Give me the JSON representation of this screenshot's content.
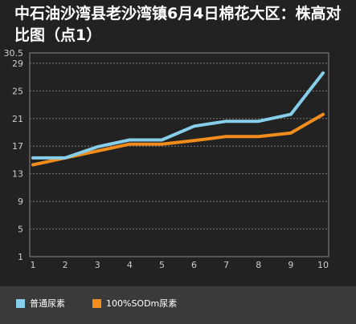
{
  "chart_data": {
    "type": "line",
    "title": "中石油沙湾县老沙湾镇6月4日棉花大区：株高对比图（点1）",
    "x": [
      "1",
      "2",
      "3",
      "4",
      "5",
      "6",
      "7",
      "8",
      "9",
      "10"
    ],
    "y_ticks": [
      "1",
      "5",
      "9",
      "13",
      "17",
      "21",
      "25",
      "29",
      "30.5"
    ],
    "ylim": [
      1,
      30.5
    ],
    "grid": true,
    "legend_position": "bottom",
    "series": [
      {
        "name": "普通尿素",
        "color": "#87ceeb",
        "values": [
          15.3,
          15.3,
          16.9,
          17.9,
          17.9,
          19.9,
          20.6,
          20.6,
          21.6,
          27.6
        ]
      },
      {
        "name": "100%SODm尿素",
        "color": "#f28c1c",
        "values": [
          14.3,
          15.3,
          16.3,
          17.3,
          17.3,
          17.8,
          18.4,
          18.4,
          18.9,
          21.6
        ]
      }
    ]
  }
}
